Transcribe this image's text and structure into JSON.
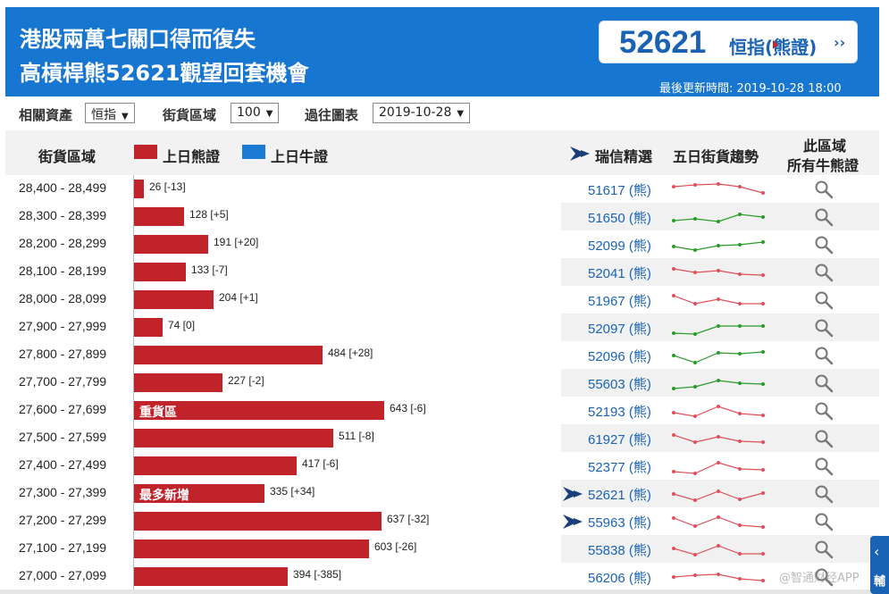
{
  "header": {
    "title_line1": "港股兩萬七關口得而復失",
    "title_line2": "高槓桿熊52621觀望回套機會",
    "ticker_code": "52621",
    "ticker_name": "恒指(熊證)",
    "ticker_chevron": "››",
    "updated": "最後更新時間: 2019-10-28 18:00"
  },
  "filters": [
    {
      "label": "相關資產",
      "value": "恒指"
    },
    {
      "label": "街貨區域",
      "value": "100"
    },
    {
      "label": "過往圖表",
      "value": "2019-10-28"
    }
  ],
  "table_header": {
    "range": "街貨區域",
    "legend_bear": "上日熊證",
    "legend_bull": "上日牛證",
    "ubs_pick": "瑞信精選",
    "trend": "五日街貨趨勢",
    "all_bulls_line1": "此區域",
    "all_bulls_line2": "所有牛熊證"
  },
  "colors": {
    "header_blue": "#1776d0",
    "bear_red": "#c1232b",
    "bull_blue": "#1a7ad4",
    "link_blue": "#1a63b4",
    "spark_up": "#2a9a2a",
    "spark_down": "#e0505a"
  },
  "icons": {
    "pick": "fish-pick-icon",
    "search": "magnifier-icon",
    "dropdown": "dropdown-arrow-icon"
  },
  "rows": [
    {
      "range": "28,400 - 28,499",
      "value": 26,
      "label": "26 [-13]",
      "code": "51617 (熊)",
      "tag": "",
      "pick": false,
      "trend": "down",
      "spark": [
        5,
        3,
        2,
        5,
        12
      ]
    },
    {
      "range": "28,300 - 28,399",
      "value": 128,
      "label": "128 [+5]",
      "code": "51650 (熊)",
      "tag": "",
      "pick": false,
      "trend": "up",
      "spark": [
        12,
        10,
        13,
        5,
        8
      ]
    },
    {
      "range": "28,200 - 28,299",
      "value": 191,
      "label": "191 [+20]",
      "code": "52099 (熊)",
      "tag": "",
      "pick": false,
      "trend": "up",
      "spark": [
        10,
        14,
        9,
        8,
        5
      ]
    },
    {
      "range": "28,100 - 28,199",
      "value": 133,
      "label": "133 [-7]",
      "code": "52041 (熊)",
      "tag": "",
      "pick": false,
      "trend": "down",
      "spark": [
        4,
        8,
        6,
        10,
        11
      ]
    },
    {
      "range": "28,000 - 28,099",
      "value": 204,
      "label": "204 [+1]",
      "code": "51967 (熊)",
      "tag": "",
      "pick": false,
      "trend": "down",
      "spark": [
        3,
        12,
        7,
        12,
        12
      ]
    },
    {
      "range": "27,900 - 27,999",
      "value": 74,
      "label": "74 [0]",
      "code": "52097 (熊)",
      "tag": "",
      "pick": false,
      "trend": "up",
      "spark": [
        14,
        15,
        6,
        6,
        6
      ]
    },
    {
      "range": "27,800 - 27,899",
      "value": 484,
      "label": "484 [+28]",
      "code": "52096 (熊)",
      "tag": "",
      "pick": false,
      "trend": "up",
      "spark": [
        8,
        16,
        5,
        6,
        4
      ]
    },
    {
      "range": "27,700 - 27,799",
      "value": 227,
      "label": "227 [-2]",
      "code": "55603 (熊)",
      "tag": "",
      "pick": false,
      "trend": "up",
      "spark": [
        14,
        12,
        5,
        8,
        9
      ]
    },
    {
      "range": "27,600 - 27,699",
      "value": 643,
      "label": "643 [-6]",
      "code": "52193 (熊)",
      "tag": "重貨區",
      "pick": false,
      "trend": "down",
      "spark": [
        10,
        14,
        3,
        11,
        13
      ]
    },
    {
      "range": "27,500 - 27,599",
      "value": 511,
      "label": "511 [-8]",
      "code": "61927 (熊)",
      "tag": "",
      "pick": false,
      "trend": "down",
      "spark": [
        4,
        12,
        6,
        11,
        12
      ]
    },
    {
      "range": "27,400 - 27,499",
      "value": 417,
      "label": "417 [-6]",
      "code": "52377 (熊)",
      "tag": "",
      "pick": false,
      "trend": "down",
      "spark": [
        14,
        16,
        4,
        11,
        12
      ]
    },
    {
      "range": "27,300 - 27,399",
      "value": 335,
      "label": "335 [+34]",
      "code": "52621 (熊)",
      "tag": "最多新增",
      "pick": true,
      "trend": "down",
      "spark": [
        8,
        15,
        5,
        14,
        7
      ]
    },
    {
      "range": "27,200 - 27,299",
      "value": 637,
      "label": "637 [-32]",
      "code": "55963 (熊)",
      "tag": "",
      "pick": true,
      "trend": "down",
      "spark": [
        4,
        13,
        3,
        12,
        14
      ]
    },
    {
      "range": "27,100 - 27,199",
      "value": 603,
      "label": "603 [-26]",
      "code": "55838 (熊)",
      "tag": "",
      "pick": false,
      "trend": "down",
      "spark": [
        7,
        14,
        4,
        13,
        13
      ]
    },
    {
      "range": "27,000 - 27,099",
      "value": 394,
      "label": "394 [-385]",
      "code": "56206 (熊)",
      "tag": "",
      "pick": false,
      "trend": "down",
      "spark": [
        8,
        6,
        5,
        10,
        12
      ]
    }
  ],
  "side_widget": {
    "chevron": "‹",
    "text": "輔"
  },
  "watermark": "@智通财经APP"
}
